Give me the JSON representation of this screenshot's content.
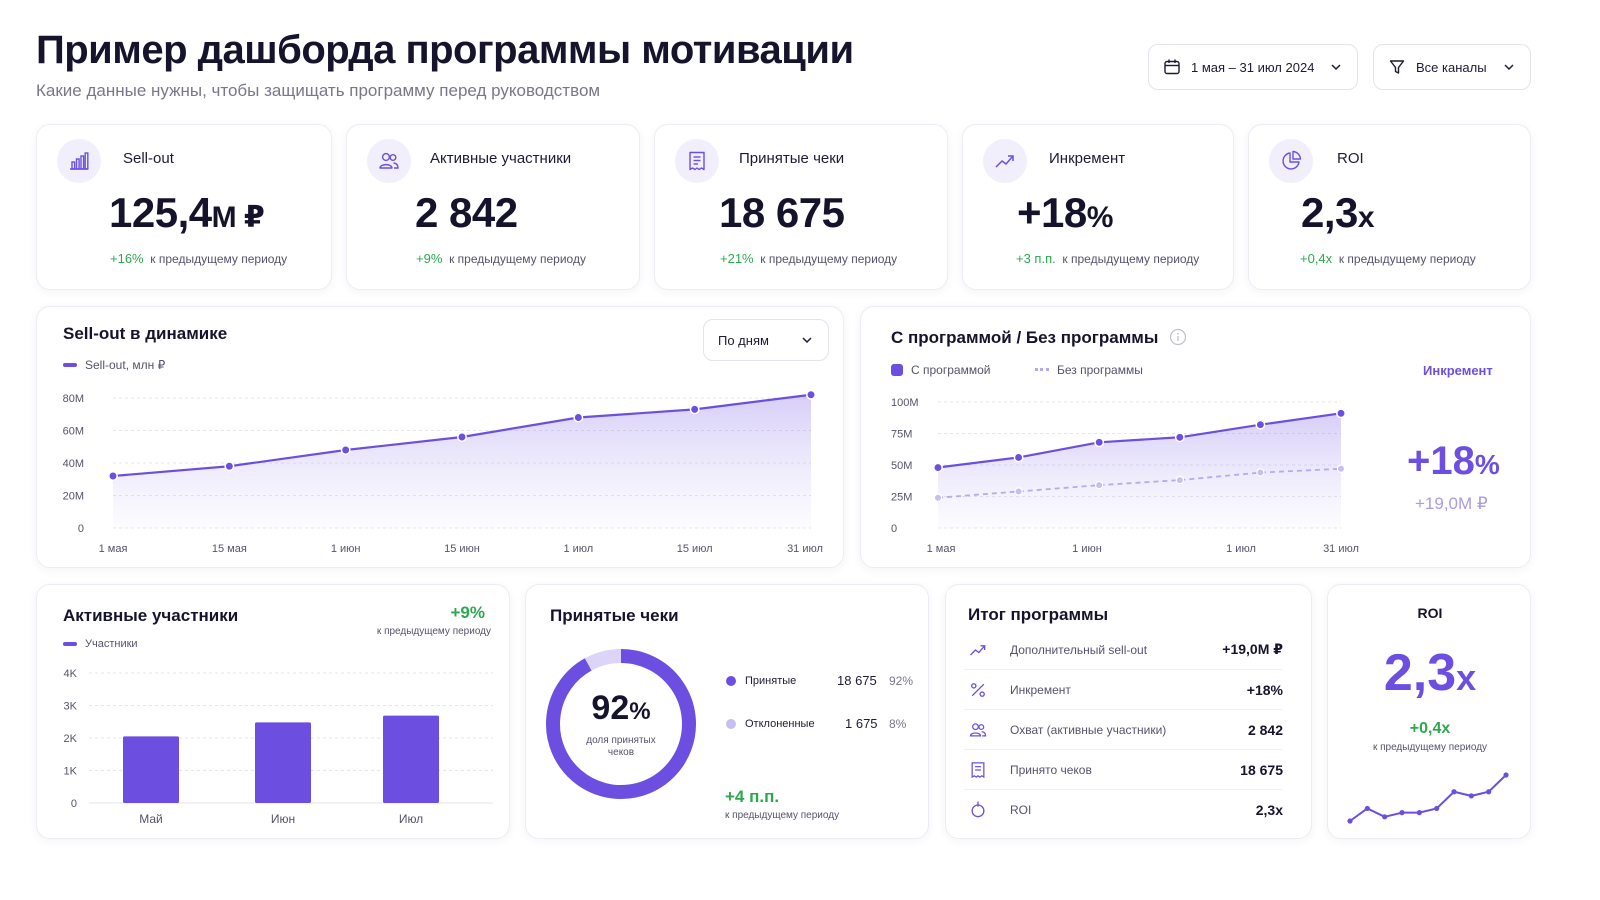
{
  "header": {
    "title": "Пример дашборда программы мотивации",
    "subtitle": "Какие данные нужны, чтобы защищать программу перед руководством",
    "date_range": "1 мая – 31 июл 2024",
    "channels": "Все каналы"
  },
  "kpis": [
    {
      "label": "Sell-out",
      "value": "125,4",
      "unit": "М ₽",
      "delta": "+16%",
      "delta_text": "к предыдущему периоду",
      "icon": "bar-chart-icon"
    },
    {
      "label": "Активные участники",
      "value": "2 842",
      "unit": "",
      "delta": "+9%",
      "delta_text": "к предыдущему периоду",
      "icon": "users-icon"
    },
    {
      "label": "Принятые чеки",
      "value": "18 675",
      "unit": "",
      "delta": "+21%",
      "delta_text": "к предыдущему периоду",
      "icon": "receipt-icon"
    },
    {
      "label": "Инкремент",
      "value": "+18",
      "unit": "%",
      "delta": "+3 п.п.",
      "delta_text": "к предыдущему периоду",
      "icon": "trend-up-icon"
    },
    {
      "label": "ROI",
      "value": "2,3",
      "unit": "x",
      "delta": "+0,4x",
      "delta_text": "к предыдущему периоду",
      "icon": "pie-icon"
    }
  ],
  "sellout_chart": {
    "title": "Sell-out в динамике",
    "select": "По дням",
    "legend": "Sell-out, млн ₽",
    "y_ticks": [
      "80M",
      "60M",
      "40M",
      "20M",
      "0"
    ],
    "x_ticks": [
      "1 мая",
      "15 мая",
      "1 июн",
      "15 июн",
      "1 июл",
      "15 июл",
      "31 июл"
    ]
  },
  "compare_chart": {
    "title": "С программой / Без программы",
    "legend_with": "С программой",
    "legend_without": "Без программы",
    "increment_label": "Инкремент",
    "increment_value": "+18",
    "increment_unit": "%",
    "increment_money": "+19,0М ₽",
    "y_ticks": [
      "100M",
      "75M",
      "50M",
      "25M",
      "0"
    ],
    "x_ticks": [
      "1 мая",
      "1 июн",
      "1 июл",
      "31 июл"
    ]
  },
  "participants_chart": {
    "title": "Активные участники",
    "delta": "+9%",
    "delta_text": "к предыдущему периоду",
    "legend": "Участники",
    "y_ticks": [
      "4K",
      "3K",
      "2K",
      "1K",
      "0"
    ]
  },
  "receipts": {
    "title": "Принятые чеки",
    "donut_value": "92",
    "donut_unit": "%",
    "donut_caption": "доля принятых чеков",
    "accepted_label": "Принятые",
    "accepted_count": "18 675",
    "accepted_pct": "92%",
    "rejected_label": "Отклоненные",
    "rejected_count": "1 675",
    "rejected_pct": "8%",
    "delta": "+4 п.п.",
    "delta_text": "к предыдущему периоду"
  },
  "summary": {
    "title": "Итог программы",
    "rows": [
      {
        "label": "Дополнительный sell-out",
        "value": "+19,0М ₽",
        "icon": "trend-up-icon"
      },
      {
        "label": "Инкремент",
        "value": "+18%",
        "icon": "percent-icon"
      },
      {
        "label": "Охват (активные участники)",
        "value": "2 842",
        "icon": "users-icon"
      },
      {
        "label": "Принято чеков",
        "value": "18 675",
        "icon": "receipt-icon"
      },
      {
        "label": "ROI",
        "value": "2,3x",
        "icon": "roi-icon"
      }
    ]
  },
  "roi_card": {
    "title": "ROI",
    "value": "2,3",
    "unit": "x",
    "delta": "+0,4x",
    "delta_text": "к предыдущему периоду"
  },
  "colors": {
    "accent": "#6c4fe0",
    "accent_light": "#c9bdf5",
    "green": "#2ea84f",
    "text": "#16142c",
    "muted": "#55536a"
  },
  "chart_data": [
    {
      "type": "area",
      "title": "Sell-out в динамике",
      "x": [
        "1 мая",
        "15 мая",
        "1 июн",
        "15 июн",
        "1 июл",
        "15 июл",
        "31 июл"
      ],
      "series": [
        {
          "name": "Sell-out, млн ₽",
          "values": [
            32,
            38,
            48,
            56,
            68,
            73,
            82
          ]
        }
      ],
      "ylim": [
        0,
        80
      ]
    },
    {
      "type": "line",
      "title": "С программой / Без программы",
      "series": [
        {
          "name": "С программой",
          "values": [
            48,
            56,
            68,
            72,
            82,
            91
          ]
        },
        {
          "name": "Без программы",
          "values": [
            24,
            29,
            34,
            38,
            44,
            47
          ]
        }
      ],
      "ylim": [
        0,
        100
      ]
    },
    {
      "type": "bar",
      "title": "Активные участники",
      "categories": [
        "Май",
        "Июн",
        "Июл"
      ],
      "series": [
        {
          "name": "Участники",
          "values": [
            2050,
            2480,
            2690
          ]
        }
      ],
      "ylim": [
        0,
        4000
      ]
    },
    {
      "type": "pie",
      "title": "Принятые чеки",
      "categories": [
        "Принятые",
        "Отклоненные"
      ],
      "values": [
        92,
        8
      ]
    },
    {
      "type": "line",
      "title": "ROI",
      "values": [
        1.7,
        2.0,
        1.8,
        1.9,
        1.9,
        2.0,
        2.4,
        2.3,
        2.4,
        2.8
      ]
    }
  ]
}
